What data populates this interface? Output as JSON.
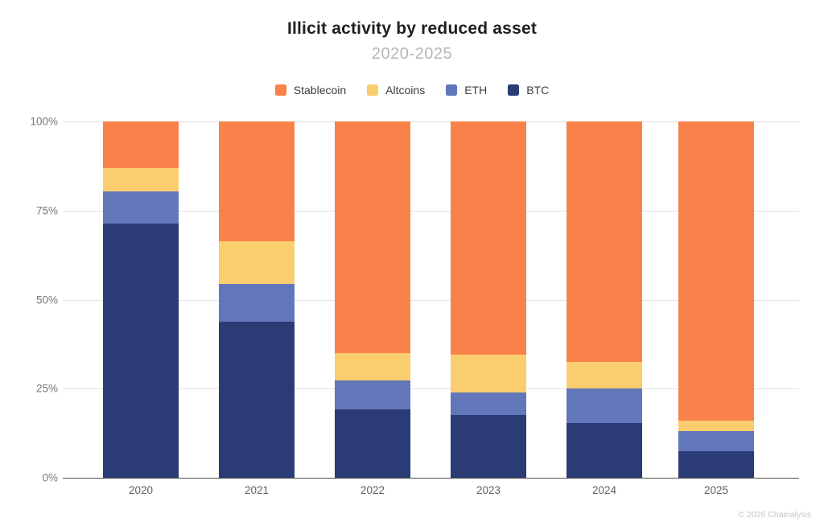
{
  "header": {
    "title": "Illicit activity by reduced asset",
    "subtitle": "2020-2025"
  },
  "footer": {
    "credit": "© 2026 Chainalysis"
  },
  "chart_data": {
    "type": "bar",
    "stacked": true,
    "unit": "percent",
    "title": "Illicit activity by reduced asset",
    "subtitle": "2020-2025",
    "categories": [
      "2020",
      "2021",
      "2022",
      "2023",
      "2024",
      "2025"
    ],
    "series": [
      {
        "name": "Stablecoin",
        "color": "#F9824A",
        "values": [
          13.0,
          33.7,
          64.9,
          65.4,
          67.5,
          84.0
        ]
      },
      {
        "name": "Altcoins",
        "color": "#FACD6E",
        "values": [
          6.6,
          11.8,
          7.7,
          10.6,
          7.5,
          3.0
        ]
      },
      {
        "name": "ETH",
        "color": "#6277B9",
        "values": [
          9.0,
          10.8,
          8.2,
          6.5,
          9.7,
          5.5
        ]
      },
      {
        "name": "BTC",
        "color": "#2B3B76",
        "values": [
          71.4,
          43.7,
          19.2,
          17.5,
          15.3,
          7.5
        ]
      }
    ],
    "stack_order_bottom_to_top": [
      "BTC",
      "ETH",
      "Altcoins",
      "Stablecoin"
    ],
    "yticks": [
      {
        "label": "100%",
        "value": 100
      },
      {
        "label": "75%",
        "value": 75
      },
      {
        "label": "50%",
        "value": 50
      },
      {
        "label": "25%",
        "value": 25
      },
      {
        "label": "0%",
        "value": 0
      }
    ],
    "ylim": [
      0,
      100
    ],
    "grid": true,
    "legend_position": "top"
  }
}
